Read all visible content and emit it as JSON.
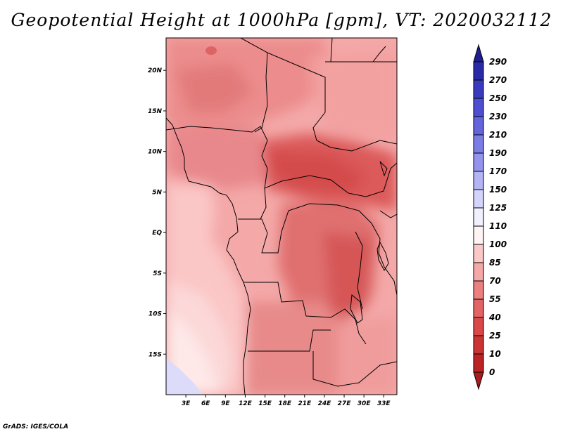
{
  "title": "Geopotential Height at 1000hPa [gpm], VT: 2020032112",
  "credit": "GrADS: IGES/COLA",
  "map": {
    "lon_range": [
      0,
      35
    ],
    "lat_range": [
      -20,
      24
    ],
    "x_ticks": [
      "3E",
      "6E",
      "9E",
      "12E",
      "15E",
      "18E",
      "21E",
      "24E",
      "27E",
      "30E",
      "33E"
    ],
    "x_tick_values": [
      3,
      6,
      9,
      12,
      15,
      18,
      21,
      24,
      27,
      30,
      33
    ],
    "y_ticks": [
      "20N",
      "15N",
      "10N",
      "5N",
      "EQ",
      "5S",
      "10S",
      "15S"
    ],
    "y_tick_values": [
      20,
      15,
      10,
      5,
      0,
      -5,
      -10,
      -15
    ]
  },
  "colorbar": {
    "labels": [
      "290",
      "270",
      "250",
      "230",
      "210",
      "190",
      "170",
      "150",
      "125",
      "110",
      "100",
      "85",
      "70",
      "55",
      "40",
      "25",
      "10",
      "0"
    ],
    "colors": [
      "#1e1e8c",
      "#2a2aa8",
      "#3a3ac0",
      "#4e4ed2",
      "#6464dc",
      "#7c7ce6",
      "#9494ee",
      "#b4b4f4",
      "#d4d4fa",
      "#f0f0fe",
      "#fff4f4",
      "#fbc8c8",
      "#f5a8a8",
      "#ea8080",
      "#e26464",
      "#da4848",
      "#cc3434",
      "#bc2424",
      "#a81c1c"
    ]
  }
}
